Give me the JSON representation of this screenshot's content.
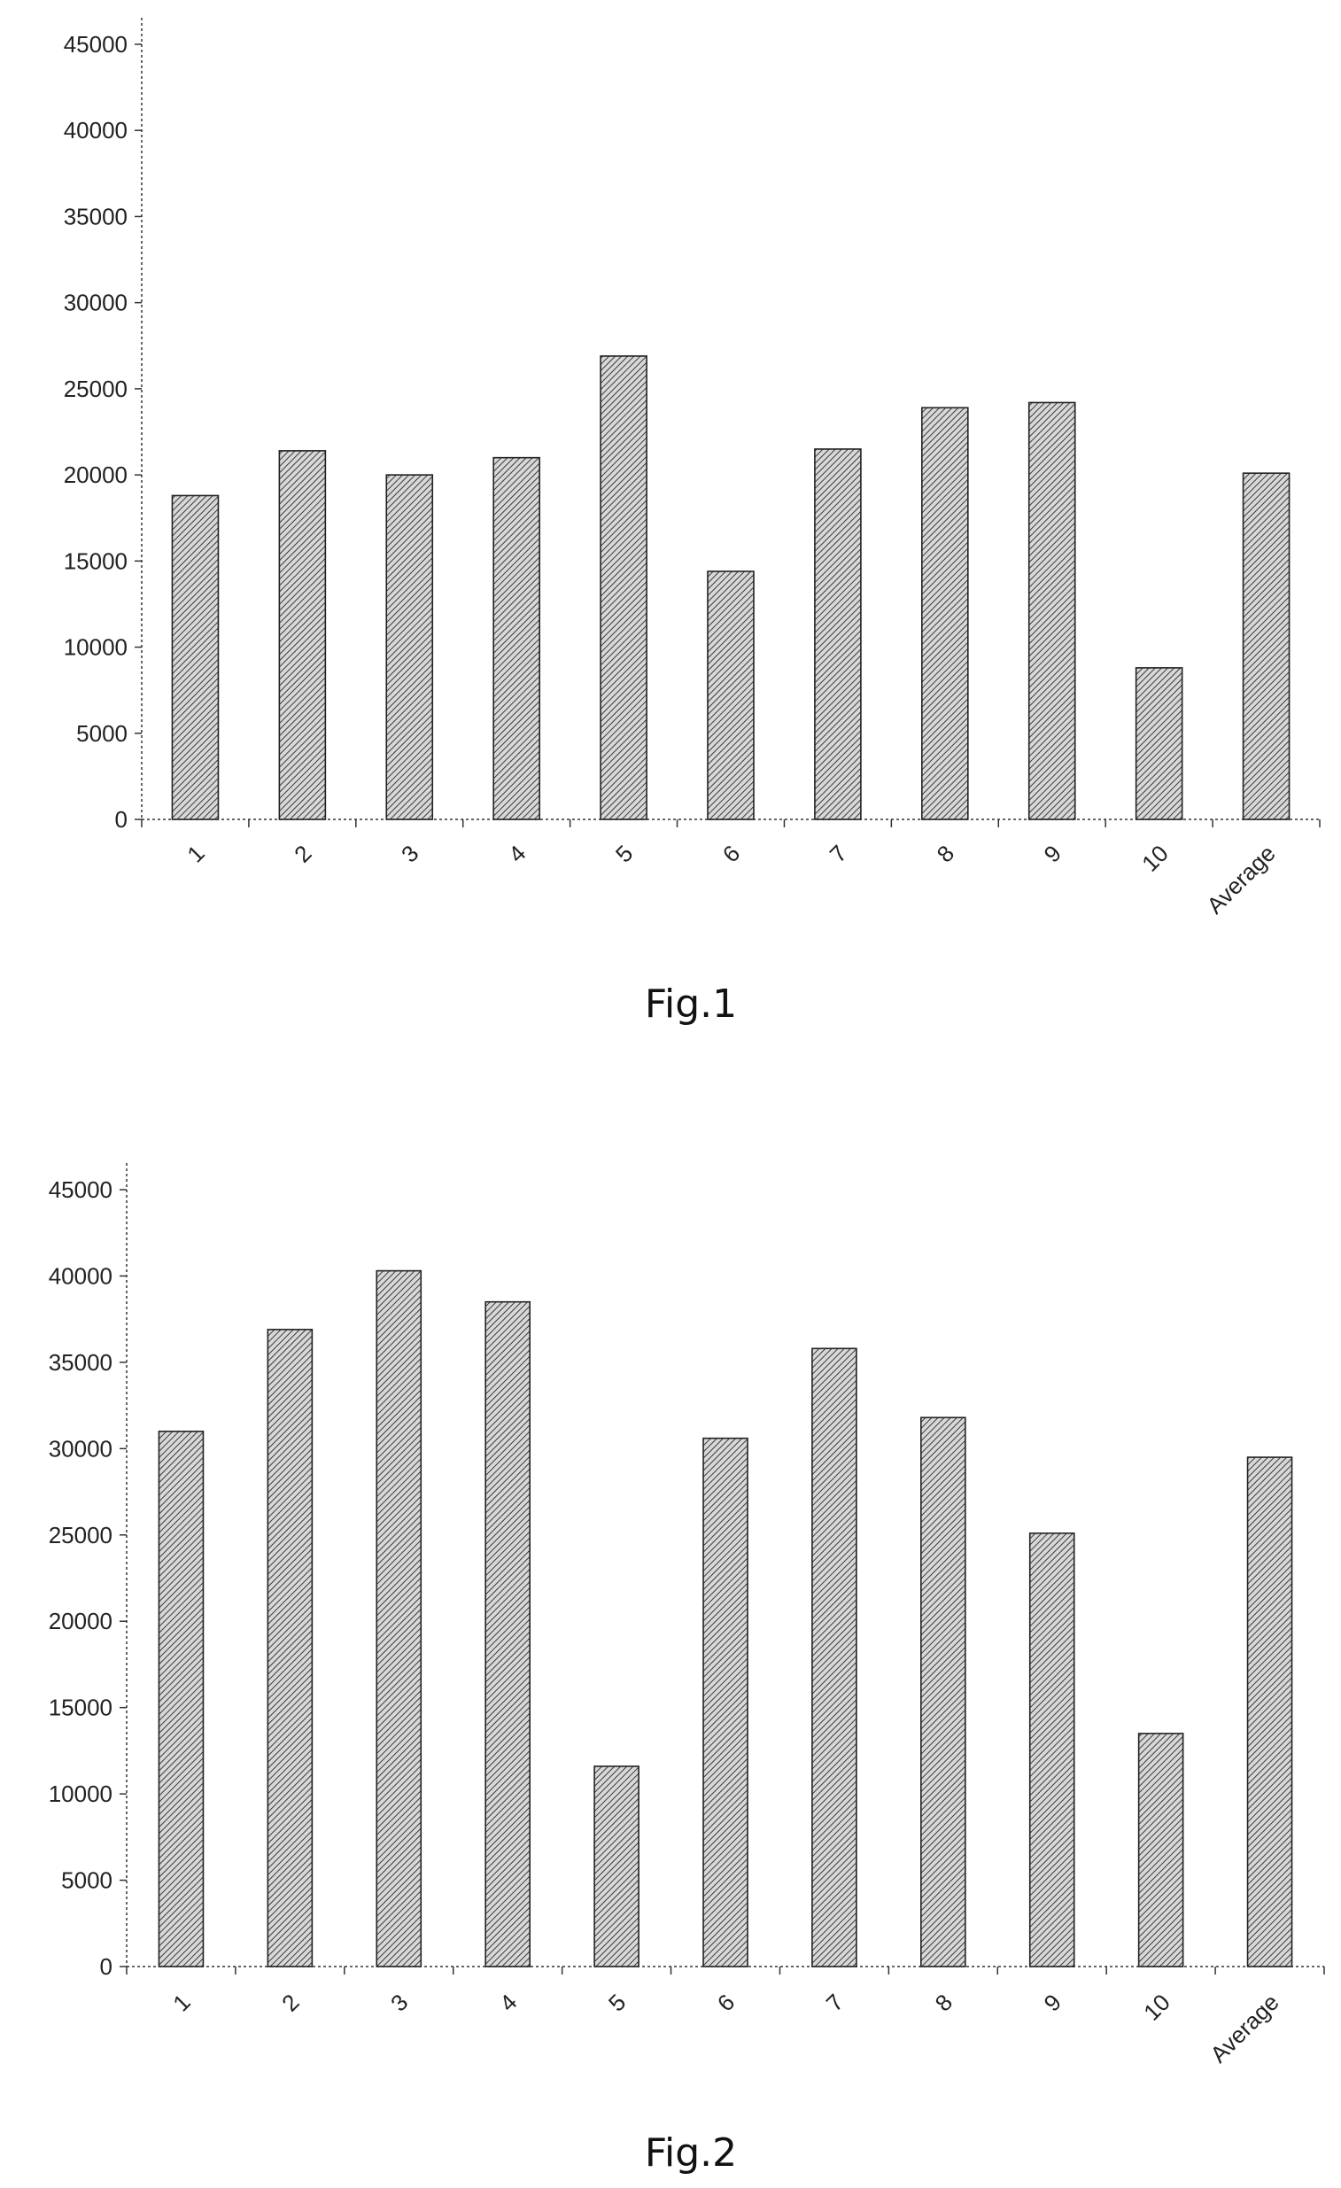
{
  "chart_data": [
    {
      "type": "bar",
      "caption": "Fig.1",
      "categories": [
        "1",
        "2",
        "3",
        "4",
        "5",
        "6",
        "7",
        "8",
        "9",
        "10",
        "Average"
      ],
      "values": [
        18800,
        21400,
        20000,
        21000,
        26900,
        14400,
        21500,
        23900,
        24200,
        8800,
        20100
      ],
      "ylim": [
        0,
        45000
      ],
      "yticks": [
        "0",
        "5000",
        "10000",
        "15000",
        "20000",
        "25000",
        "30000",
        "35000",
        "40000",
        "45000"
      ],
      "grid": false,
      "legend": "none"
    },
    {
      "type": "bar",
      "caption": "Fig.2",
      "categories": [
        "1",
        "2",
        "3",
        "4",
        "5",
        "6",
        "7",
        "8",
        "9",
        "10",
        "Average"
      ],
      "values": [
        31000,
        36900,
        40300,
        38500,
        11600,
        30600,
        35800,
        31800,
        25100,
        13500,
        29500
      ],
      "ylim": [
        0,
        45000
      ],
      "yticks": [
        "0",
        "5000",
        "10000",
        "15000",
        "20000",
        "25000",
        "30000",
        "35000",
        "40000",
        "45000"
      ],
      "grid": false,
      "legend": "none"
    }
  ]
}
